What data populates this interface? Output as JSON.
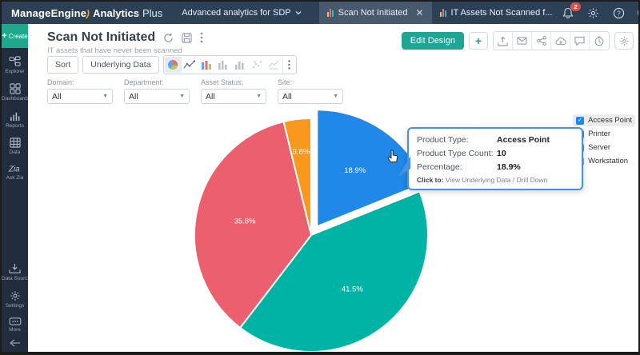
{
  "topbar": {
    "brand": {
      "part1": "ManageEngine",
      "part2": "Analytics",
      "part3": "Plus"
    },
    "product_switcher": "Advanced analytics for SDP",
    "tabs": [
      {
        "label": "Scan Not Initiated",
        "active": true
      },
      {
        "label": "IT Assets Not Scanned f...",
        "active": false
      }
    ],
    "notification_count": "2"
  },
  "sidebar": {
    "create_label": "Create",
    "items": [
      "Explorer",
      "Dashboards",
      "Reports",
      "Data",
      "Ask Zia",
      "Data Sources",
      "Settings",
      "More"
    ]
  },
  "header": {
    "title": "Scan Not Initiated",
    "subtitle": "IT assets that have never been scanned",
    "edit_design_label": "Edit Design"
  },
  "toolbar": {
    "sort_label": "Sort",
    "underlying_data_label": "Underlying Data"
  },
  "filters": [
    {
      "label": "Domain:",
      "value": "All"
    },
    {
      "label": "Department:",
      "value": "All"
    },
    {
      "label": "Asset Status:",
      "value": "All"
    },
    {
      "label": "Site:",
      "value": "All"
    }
  ],
  "tooltip": {
    "rows": [
      {
        "label": "Product Type:",
        "value": "Access Point"
      },
      {
        "label": "Product Type Count:",
        "value": "10"
      },
      {
        "label": "Percentage:",
        "value": "18.9%"
      }
    ],
    "footer_label": "Click to:",
    "footer_value": "View Underlying Data / Drill Down"
  },
  "chart_data": {
    "type": "pie",
    "title": "Scan Not Initiated",
    "categories": [
      "Access Point",
      "Printer",
      "Server",
      "Workstation"
    ],
    "values": [
      18.9,
      41.5,
      35.8,
      3.8
    ],
    "unit": "%",
    "colors": [
      "#2088e8",
      "#00b3a4",
      "#ec5f6e",
      "#f8981d"
    ],
    "exploded_index": 0,
    "legend_position": "right",
    "hovered_slice": {
      "category": "Access Point",
      "count": 10,
      "percentage": "18.9%"
    }
  },
  "colors": {
    "accent_teal": "#1ea593",
    "topbar_bg": "#2d4156",
    "sidebar_bg": "#212c3d",
    "tooltip_border": "#4a90e2"
  }
}
